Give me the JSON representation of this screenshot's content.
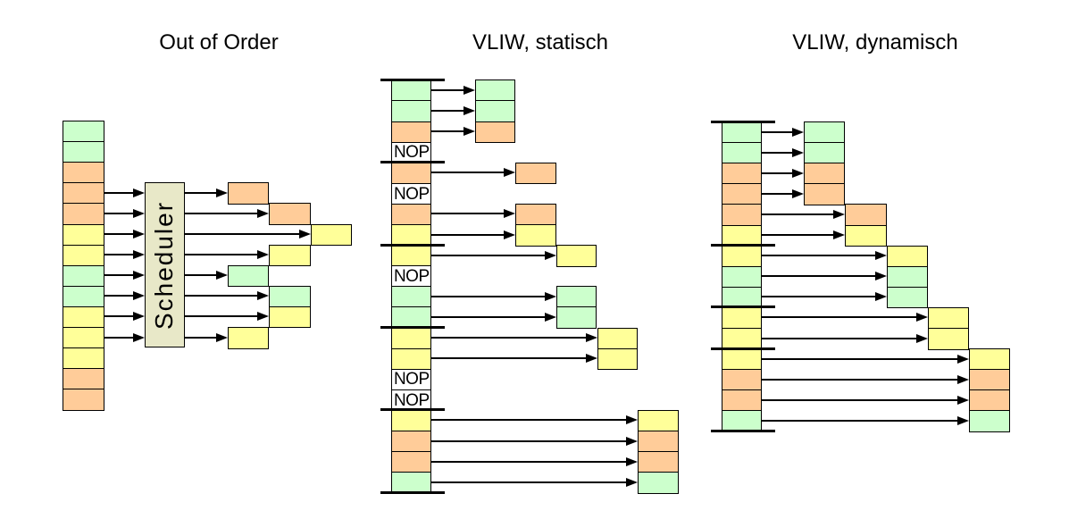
{
  "colors": {
    "palette": {
      "green": "#ccffcc",
      "orange": "#ffcc99",
      "yellow": "#ffff99"
    },
    "scheduler_fill": "#e8e8c8",
    "nop_fill": "#ffffff",
    "line": "#000000"
  },
  "labels": {
    "scheduler": "Scheduler",
    "nop": "NOP"
  },
  "diagrams": {
    "out_of_order": {
      "title": "Out of Order",
      "instruction_queue": [
        "green",
        "green",
        "orange",
        "orange",
        "orange",
        "yellow",
        "yellow",
        "green",
        "green",
        "yellow",
        "yellow",
        "yellow",
        "orange",
        "orange"
      ],
      "scheduler_window": {
        "first_row": 3,
        "last_row": 10
      },
      "issue_slots": [
        {
          "row": 3,
          "cycle": 0,
          "color": "orange"
        },
        {
          "row": 4,
          "cycle": 1,
          "color": "orange"
        },
        {
          "row": 5,
          "cycle": 2,
          "color": "yellow"
        },
        {
          "row": 6,
          "cycle": 1,
          "color": "yellow"
        },
        {
          "row": 7,
          "cycle": 0,
          "color": "green"
        },
        {
          "row": 8,
          "cycle": 1,
          "color": "green"
        },
        {
          "row": 9,
          "cycle": 1,
          "color": "yellow"
        },
        {
          "row": 10,
          "cycle": 0,
          "color": "yellow"
        }
      ]
    },
    "vliw_static": {
      "title": "VLIW, statisch",
      "bundle_size": 4,
      "rows": [
        "green",
        "green",
        "orange",
        "NOP",
        "orange",
        "NOP",
        "orange",
        "yellow",
        "yellow",
        "NOP",
        "green",
        "green",
        "yellow",
        "yellow",
        "NOP",
        "NOP",
        "yellow",
        "orange",
        "orange",
        "green"
      ]
    },
    "vliw_dynamic": {
      "title": "VLIW, dynamisch",
      "rows": [
        "green",
        "green",
        "orange",
        "orange",
        "orange",
        "yellow",
        "yellow",
        "green",
        "green",
        "yellow",
        "yellow",
        "yellow",
        "orange",
        "orange",
        "green"
      ],
      "bundle_boundaries": [
        0,
        6,
        9,
        11,
        15
      ],
      "issue_cycles": [
        0,
        0,
        0,
        0,
        1,
        1,
        2,
        2,
        2,
        3,
        3,
        4,
        4,
        4,
        4
      ]
    }
  }
}
